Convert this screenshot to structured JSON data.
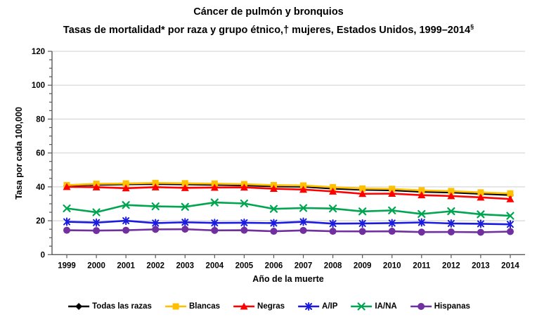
{
  "colors": {
    "grid": "#D9D9D9",
    "axis": "#595959",
    "text": "#000000",
    "background": "#FFFFFF"
  },
  "chart_data": {
    "type": "line",
    "title_line1": "Cáncer de pulmón y bronquios",
    "title_line2": "Tasas de mortalidad* por raza y grupo étnico,† mujeres, Estados Unidos, 1999–2014",
    "title_sup": "§",
    "xlabel": "Año de la muerte",
    "ylabel": "Tasa por cada 100,000",
    "x": [
      1999,
      2000,
      2001,
      2002,
      2003,
      2004,
      2005,
      2006,
      2007,
      2008,
      2009,
      2010,
      2011,
      2012,
      2013,
      2014
    ],
    "ylim": [
      0,
      120
    ],
    "ytick_step": 20,
    "ytick_minor": 5,
    "grid": "horizontal",
    "legend_position": "bottom",
    "series": [
      {
        "name": "Todas las razas",
        "color": "#000000",
        "marker": "diamond",
        "values": [
          40.7,
          41.2,
          41.5,
          41.7,
          41.5,
          41.2,
          40.9,
          40.3,
          40.1,
          39.0,
          38.3,
          38.0,
          37.1,
          36.7,
          35.9,
          35.2
        ]
      },
      {
        "name": "Blancas",
        "color": "#FFC000",
        "marker": "square",
        "values": [
          41.0,
          41.8,
          42.0,
          42.3,
          42.1,
          41.9,
          41.6,
          41.0,
          40.8,
          39.8,
          39.0,
          38.8,
          37.9,
          37.5,
          36.7,
          36.1
        ]
      },
      {
        "name": "Negras",
        "color": "#FF0000",
        "marker": "triangle",
        "values": [
          40.0,
          39.8,
          39.2,
          39.8,
          39.4,
          39.6,
          39.7,
          38.9,
          38.4,
          37.3,
          35.9,
          36.0,
          35.1,
          34.6,
          33.8,
          32.8
        ]
      },
      {
        "name": "A/IP",
        "color": "#1B1BE0",
        "marker": "asterisk",
        "values": [
          19.4,
          18.9,
          20.0,
          18.6,
          19.1,
          18.7,
          18.8,
          18.6,
          19.4,
          18.3,
          18.4,
          18.6,
          19.0,
          18.4,
          18.2,
          17.9
        ]
      },
      {
        "name": "IA/NA",
        "color": "#00A550",
        "marker": "x",
        "values": [
          27.3,
          25.0,
          29.3,
          28.5,
          28.2,
          30.8,
          30.2,
          27.0,
          27.5,
          27.2,
          25.5,
          26.1,
          24.0,
          25.6,
          23.8,
          22.9
        ]
      },
      {
        "name": "Hispanas",
        "color": "#7030A0",
        "marker": "circle",
        "values": [
          14.4,
          14.2,
          14.4,
          14.9,
          15.0,
          14.3,
          14.4,
          13.8,
          14.3,
          13.8,
          13.7,
          13.8,
          13.3,
          13.4,
          13.2,
          13.6
        ]
      }
    ]
  }
}
